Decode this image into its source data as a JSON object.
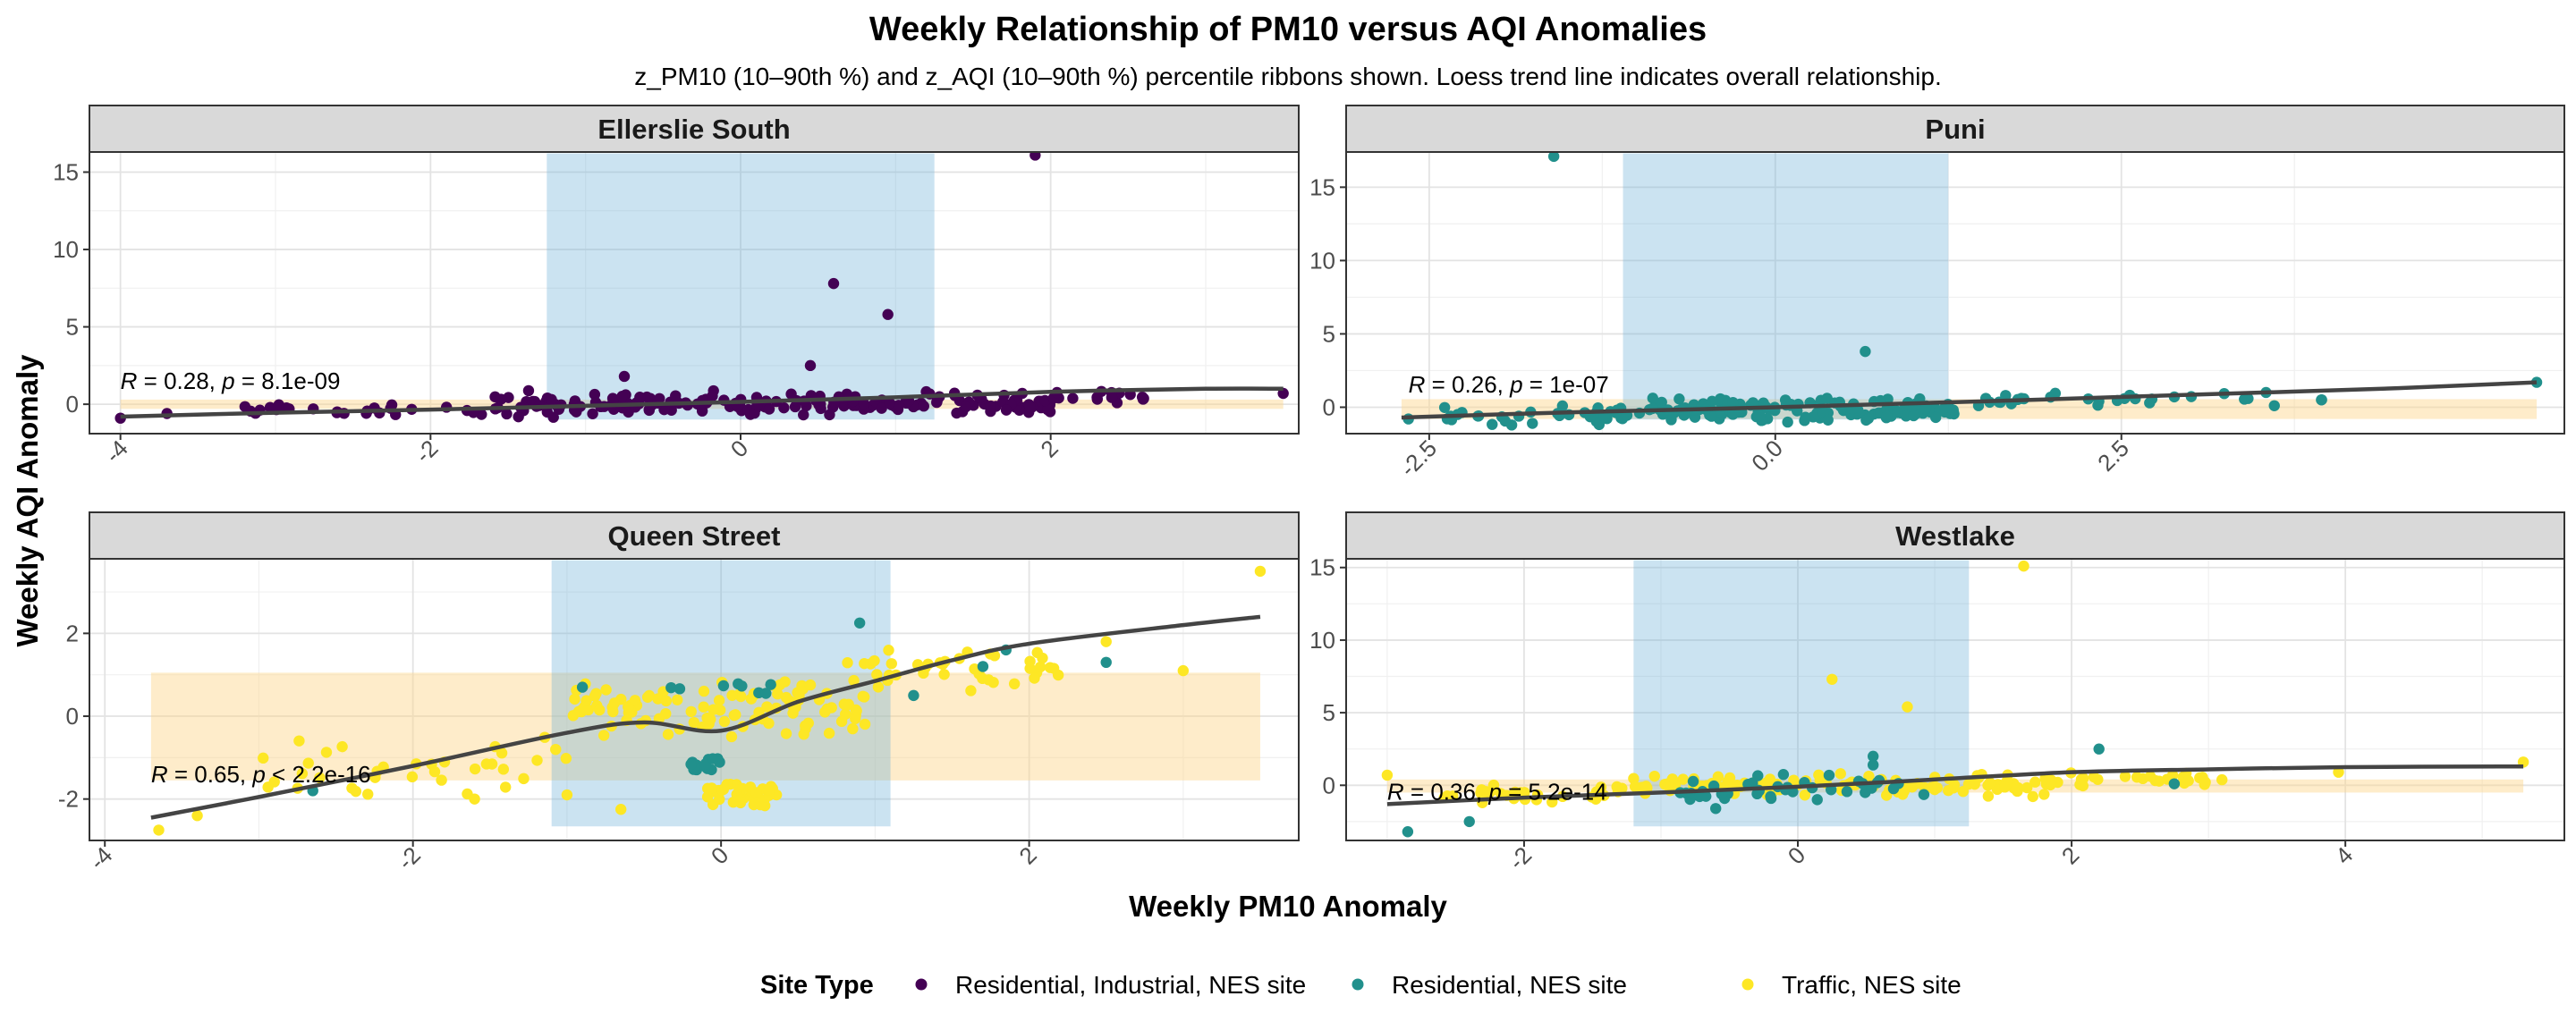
{
  "chart_data": {
    "type": "scatter",
    "title": "Weekly Relationship of PM10 versus AQI Anomalies",
    "subtitle": "z_PM10 (10–90th %) and z_AQI (10–90th %) percentile ribbons shown. Loess trend line indicates overall relationship.",
    "xlabel": "Weekly PM10 Anomaly",
    "ylabel": "Weekly AQI Anomaly",
    "legend": {
      "title": "Site Type",
      "position": "bottom",
      "entries": [
        {
          "label": "Residential, Industrial, NES site",
          "color": "#440154"
        },
        {
          "label": "Residential, NES site",
          "color": "#21908C"
        },
        {
          "label": "Traffic, NES site",
          "color": "#FDE725"
        }
      ]
    },
    "ribbon_colors": {
      "x_ribbon": "#6BAED6",
      "y_ribbon": "#FDD58A"
    },
    "trend_color": "#444444",
    "panels": [
      {
        "name": "Ellerslie South",
        "xlim": [
          -4.2,
          3.6
        ],
        "ylim": [
          -1.9,
          16.3
        ],
        "xticks": [
          -4,
          -2,
          0,
          2
        ],
        "xtick_labels": [
          "-4",
          "-2",
          "0",
          "2"
        ],
        "yticks": [
          0,
          5,
          10,
          15
        ],
        "ytick_labels": [
          "0",
          "5",
          "10",
          "15"
        ],
        "x_ribbon": [
          -1.25,
          1.25
        ],
        "y_ribbon": [
          -0.3,
          0.3
        ],
        "annotation": {
          "r": "0.28",
          "p": "8.1e-09"
        },
        "annot_x": -4.0,
        "annot_y": 1.0,
        "trend": [
          [
            -4.0,
            -0.8
          ],
          [
            -3,
            -0.55
          ],
          [
            -2,
            -0.35
          ],
          [
            -1,
            -0.1
          ],
          [
            0,
            0.15
          ],
          [
            1,
            0.45
          ],
          [
            2,
            0.8
          ],
          [
            3,
            1.0
          ],
          [
            3.5,
            1.0
          ]
        ],
        "points": [
          {
            "type": 0,
            "x": 1.9,
            "y": 16.1
          },
          {
            "type": 0,
            "x": 0.6,
            "y": 7.8
          },
          {
            "type": 0,
            "x": 0.95,
            "y": 5.8
          },
          {
            "type": 0,
            "x": 0.45,
            "y": 2.5
          },
          {
            "type": 0,
            "x": -0.75,
            "y": 1.8
          },
          {
            "type": 0,
            "x": 3.5,
            "y": 0.7
          },
          {
            "type": 0,
            "x": -4.0,
            "y": -0.9
          },
          {
            "type": 0,
            "x": -3.7,
            "y": -0.6
          }
        ],
        "clusters": [
          {
            "type": 0,
            "n": 190,
            "x": [
              -1.6,
              2.0
            ],
            "y": [
              -0.9,
              0.9
            ]
          },
          {
            "type": 0,
            "n": 25,
            "x": [
              -3.2,
              -1.6
            ],
            "y": [
              -0.9,
              0.1
            ]
          },
          {
            "type": 0,
            "n": 15,
            "x": [
              2.0,
              2.6
            ],
            "y": [
              -0.1,
              0.9
            ]
          }
        ]
      },
      {
        "name": "Puni",
        "xlim": [
          -3.1,
          5.7
        ],
        "ylim": [
          -1.8,
          17.4
        ],
        "xticks": [
          -2.5,
          0,
          2.5
        ],
        "xtick_labels": [
          "-2.5",
          "0.0",
          "2.5"
        ],
        "yticks": [
          0,
          5,
          10,
          15
        ],
        "ytick_labels": [
          "0",
          "5",
          "10",
          "15"
        ],
        "x_ribbon": [
          -1.1,
          1.25
        ],
        "y_ribbon": [
          -0.8,
          0.55
        ],
        "annotation": {
          "r": "0.26",
          "p": "1e-07"
        },
        "annot_x": -2.65,
        "annot_y": 1.0,
        "trend": [
          [
            -2.7,
            -0.7
          ],
          [
            -1.5,
            -0.35
          ],
          [
            0,
            0.0
          ],
          [
            1.5,
            0.4
          ],
          [
            3,
            0.85
          ],
          [
            4.5,
            1.3
          ],
          [
            5.5,
            1.7
          ]
        ],
        "points": [
          {
            "type": 1,
            "x": -1.6,
            "y": 17.1
          },
          {
            "type": 1,
            "x": 0.65,
            "y": 3.8
          },
          {
            "type": 1,
            "x": 5.5,
            "y": 1.7
          },
          {
            "type": 1,
            "x": -2.65,
            "y": -0.8
          }
        ],
        "clusters": [
          {
            "type": 1,
            "n": 150,
            "x": [
              -1.0,
              1.3
            ],
            "y": [
              -1.1,
              0.8
            ]
          },
          {
            "type": 1,
            "n": 35,
            "x": [
              -2.4,
              -1.0
            ],
            "y": [
              -1.3,
              0.2
            ]
          },
          {
            "type": 1,
            "n": 30,
            "x": [
              1.3,
              4.0
            ],
            "y": [
              0.0,
              1.1
            ]
          }
        ]
      },
      {
        "name": "Queen Street",
        "xlim": [
          -4.1,
          3.75
        ],
        "ylim": [
          -3.0,
          3.8
        ],
        "xticks": [
          -4,
          -2,
          0,
          2
        ],
        "xtick_labels": [
          "-4",
          "-2",
          "0",
          "2"
        ],
        "yticks": [
          -2,
          0,
          2
        ],
        "ytick_labels": [
          "-2",
          "0",
          "2"
        ],
        "x_ribbon": [
          -1.1,
          1.1
        ],
        "y_ribbon": [
          -1.55,
          1.05
        ],
        "annotation": {
          "r": "0.65",
          "p": "< 2.2e-16"
        },
        "annot_x": -3.7,
        "annot_y": -1.6,
        "trend": [
          [
            -3.7,
            -2.45
          ],
          [
            -3,
            -1.95
          ],
          [
            -2,
            -1.2
          ],
          [
            -1,
            -0.4
          ],
          [
            -0.5,
            -0.15
          ],
          [
            0,
            -0.35
          ],
          [
            0.5,
            0.35
          ],
          [
            1,
            0.85
          ],
          [
            1.5,
            1.35
          ],
          [
            2,
            1.75
          ],
          [
            3,
            2.2
          ],
          [
            3.5,
            2.4
          ]
        ],
        "points": [
          {
            "type": 2,
            "x": 3.5,
            "y": 3.5
          },
          {
            "type": 2,
            "x": -3.65,
            "y": -2.75
          },
          {
            "type": 2,
            "x": -3.4,
            "y": -2.4
          },
          {
            "type": 2,
            "x": -0.65,
            "y": -2.25
          },
          {
            "type": 2,
            "x": -1.0,
            "y": -1.9
          },
          {
            "type": 2,
            "x": -1.6,
            "y": -2.0
          },
          {
            "type": 1,
            "x": 0.9,
            "y": 2.25
          },
          {
            "type": 1,
            "x": 1.85,
            "y": 1.6
          },
          {
            "type": 1,
            "x": 1.7,
            "y": 1.2
          },
          {
            "type": 1,
            "x": 2.5,
            "y": 1.3
          },
          {
            "type": 1,
            "x": -2.65,
            "y": -1.8
          },
          {
            "type": 1,
            "x": -0.9,
            "y": 0.7
          },
          {
            "type": 1,
            "x": 1.25,
            "y": 0.5
          },
          {
            "type": 2,
            "x": 3.0,
            "y": 1.1
          },
          {
            "type": 2,
            "x": 2.5,
            "y": 1.8
          }
        ],
        "clusters": [
          {
            "type": 2,
            "n": 110,
            "x": [
              -1.0,
              1.0
            ],
            "y": [
              -0.6,
              1.0
            ]
          },
          {
            "type": 2,
            "n": 40,
            "x": [
              -0.1,
              0.4
            ],
            "y": [
              -2.2,
              -1.5
            ]
          },
          {
            "type": 2,
            "n": 35,
            "x": [
              -3.0,
              -1.0
            ],
            "y": [
              -2.0,
              -0.3
            ]
          },
          {
            "type": 2,
            "n": 40,
            "x": [
              0.8,
              2.2
            ],
            "y": [
              0.6,
              1.7
            ]
          },
          {
            "type": 1,
            "n": 14,
            "x": [
              -0.2,
              0.0
            ],
            "y": [
              -1.4,
              -0.8
            ]
          },
          {
            "type": 1,
            "n": 8,
            "x": [
              -0.5,
              0.5
            ],
            "y": [
              0.3,
              0.9
            ]
          }
        ]
      },
      {
        "name": "Westlake",
        "xlim": [
          -3.3,
          5.6
        ],
        "ylim": [
          -3.8,
          15.6
        ],
        "xticks": [
          -2,
          0,
          2,
          4
        ],
        "xtick_labels": [
          "-2",
          "0",
          "2",
          "4"
        ],
        "yticks": [
          0,
          5,
          10,
          15
        ],
        "ytick_labels": [
          "0",
          "5",
          "10",
          "15"
        ],
        "x_ribbon": [
          -1.2,
          1.25
        ],
        "y_ribbon": [
          -0.5,
          0.4
        ],
        "annotation": {
          "r": "0.36",
          "p": "5.2e-14"
        },
        "annot_x": -3.0,
        "annot_y": -1.0,
        "trend": [
          [
            -3,
            -1.3
          ],
          [
            -2,
            -0.85
          ],
          [
            -1,
            -0.5
          ],
          [
            0,
            -0.1
          ],
          [
            1,
            0.4
          ],
          [
            2,
            0.9
          ],
          [
            3,
            1.1
          ],
          [
            4,
            1.25
          ],
          [
            5.3,
            1.3
          ]
        ],
        "points": [
          {
            "type": 2,
            "x": 1.65,
            "y": 15.1
          },
          {
            "type": 2,
            "x": 0.25,
            "y": 7.3
          },
          {
            "type": 2,
            "x": 0.8,
            "y": 5.4
          },
          {
            "type": 2,
            "x": 5.3,
            "y": 1.6
          },
          {
            "type": 2,
            "x": 3.95,
            "y": 0.9
          },
          {
            "type": 2,
            "x": -3.0,
            "y": 0.7
          },
          {
            "type": 1,
            "x": -2.85,
            "y": -3.2
          },
          {
            "type": 1,
            "x": -2.4,
            "y": -2.5
          },
          {
            "type": 1,
            "x": 2.2,
            "y": 2.5
          },
          {
            "type": 1,
            "x": 0.55,
            "y": 2.0
          },
          {
            "type": 1,
            "x": 0.55,
            "y": 1.4
          },
          {
            "type": 1,
            "x": 2.75,
            "y": 0.1
          },
          {
            "type": 1,
            "x": -0.6,
            "y": -1.6
          }
        ],
        "clusters": [
          {
            "type": 2,
            "n": 120,
            "x": [
              -1.2,
              1.9
            ],
            "y": [
              -0.9,
              0.9
            ]
          },
          {
            "type": 2,
            "n": 30,
            "x": [
              -2.6,
              -1.2
            ],
            "y": [
              -1.4,
              0.2
            ]
          },
          {
            "type": 2,
            "n": 25,
            "x": [
              1.9,
              3.2
            ],
            "y": [
              -0.1,
              1.0
            ]
          },
          {
            "type": 1,
            "n": 40,
            "x": [
              -1.0,
              1.0
            ],
            "y": [
              -1.3,
              0.9
            ]
          }
        ]
      }
    ]
  }
}
